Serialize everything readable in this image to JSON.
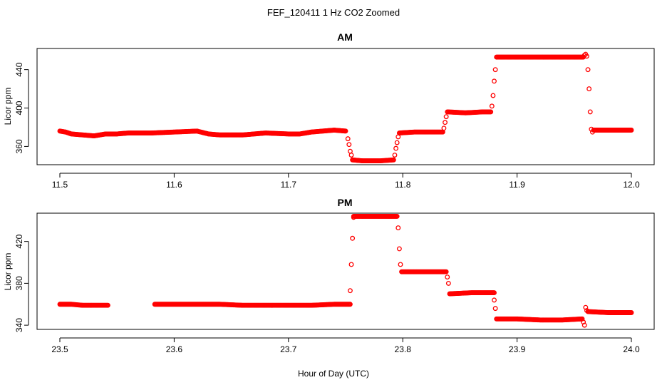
{
  "chart_data": {
    "title": "FEF_120411  1 Hz CO2 Zoomed",
    "xlabel": "Hour of Day (UTC)",
    "marker_color": "#ff0000",
    "panels": [
      {
        "type": "scatter",
        "title": "AM",
        "ylabel": "Licor ppm",
        "xlim": [
          11.5,
          12.0
        ],
        "ylim": [
          341,
          462
        ],
        "xticks": [
          "11.5",
          "11.6",
          "11.7",
          "11.8",
          "11.9",
          "12.0"
        ],
        "yticks": [
          360,
          400,
          440
        ],
        "segments": [
          {
            "x": [
              11.5,
              11.505,
              11.51,
              11.52,
              11.53,
              11.54,
              11.55,
              11.56,
              11.58,
              11.6,
              11.62,
              11.63,
              11.64,
              11.66,
              11.68,
              11.7,
              11.71,
              11.72,
              11.73,
              11.74,
              11.75
            ],
            "y": [
              376,
              375,
              373,
              372,
              371,
              373,
              373,
              374,
              374,
              375,
              376,
              373,
              372,
              372,
              374,
              373,
              373,
              375,
              376,
              377,
              376
            ]
          },
          {
            "x": [
              11.752,
              11.753,
              11.754,
              11.755
            ],
            "y": [
              368,
              362,
              355,
              351
            ]
          },
          {
            "x": [
              11.756,
              11.765,
              11.78,
              11.792
            ],
            "y": [
              346,
              345,
              345,
              346
            ]
          },
          {
            "x": [
              11.793,
              11.794,
              11.795,
              11.796
            ],
            "y": [
              351,
              358,
              364,
              370
            ]
          },
          {
            "x": [
              11.797,
              11.81,
              11.825,
              11.835
            ],
            "y": [
              374,
              375,
              375,
              375
            ]
          },
          {
            "x": [
              11.836,
              11.837,
              11.838
            ],
            "y": [
              379,
              385,
              391
            ]
          },
          {
            "x": [
              11.839,
              11.855,
              11.87,
              11.877
            ],
            "y": [
              396,
              395,
              396,
              396
            ]
          },
          {
            "x": [
              11.878,
              11.879,
              11.88,
              11.881
            ],
            "y": [
              402,
              413,
              428,
              440
            ]
          },
          {
            "x": [
              11.882,
              11.9,
              11.92,
              11.94,
              11.958
            ],
            "y": [
              453,
              453,
              453,
              453,
              453
            ]
          },
          {
            "x": [
              11.959,
              11.96,
              11.961
            ],
            "y": [
              455,
              456,
              454
            ]
          },
          {
            "x": [
              11.962,
              11.963,
              11.964
            ],
            "y": [
              440,
              420,
              396
            ]
          },
          {
            "x": [
              11.965,
              11.966
            ],
            "y": [
              378,
              375
            ]
          },
          {
            "x": [
              11.967,
              11.98,
              11.99,
              12.0
            ],
            "y": [
              377,
              377,
              377,
              377
            ]
          }
        ]
      },
      {
        "type": "scatter",
        "title": "PM",
        "ylabel": "Licor ppm",
        "xlim": [
          23.5,
          24.0
        ],
        "ylim": [
          336,
          447
        ],
        "xticks": [
          "23.5",
          "23.6",
          "23.7",
          "23.8",
          "23.9",
          "24.0"
        ],
        "yticks": [
          340,
          380,
          420
        ],
        "segments": [
          {
            "x": [
              23.5,
              23.51,
              23.52,
              23.53,
              23.542
            ],
            "y": [
              360,
              360,
              359,
              359,
              359
            ]
          },
          {
            "x": [
              23.583,
              23.6,
              23.62,
              23.64,
              23.66,
              23.68,
              23.7,
              23.72,
              23.74,
              23.754
            ],
            "y": [
              360,
              360,
              360,
              360,
              359,
              359,
              359,
              359,
              360,
              360
            ]
          },
          {
            "x": [
              23.754,
              23.755,
              23.756,
              23.757
            ],
            "y": [
              373,
              398,
              423,
              443
            ]
          },
          {
            "x": [
              23.757,
              23.77,
              23.785,
              23.795
            ],
            "y": [
              444,
              444,
              444,
              444
            ]
          },
          {
            "x": [
              23.796,
              23.797,
              23.798
            ],
            "y": [
              433,
              413,
              398
            ]
          },
          {
            "x": [
              23.799,
              23.815,
              23.83,
              23.838
            ],
            "y": [
              391,
              391,
              391,
              391
            ]
          },
          {
            "x": [
              23.839,
              23.84
            ],
            "y": [
              386,
              380
            ]
          },
          {
            "x": [
              23.841,
              23.86,
              23.88
            ],
            "y": [
              370,
              371,
              371
            ]
          },
          {
            "x": [
              23.88,
              23.881
            ],
            "y": [
              364,
              356
            ]
          },
          {
            "x": [
              23.882,
              23.9,
              23.92,
              23.94,
              23.957
            ],
            "y": [
              346,
              346,
              345,
              345,
              346
            ]
          },
          {
            "x": [
              23.958,
              23.959
            ],
            "y": [
              343,
              340
            ]
          },
          {
            "x": [
              23.96,
              23.961
            ],
            "y": [
              357,
              354
            ]
          },
          {
            "x": [
              23.962,
              23.98,
              23.99,
              24.0
            ],
            "y": [
              353,
              352,
              352,
              352
            ]
          }
        ]
      }
    ]
  }
}
